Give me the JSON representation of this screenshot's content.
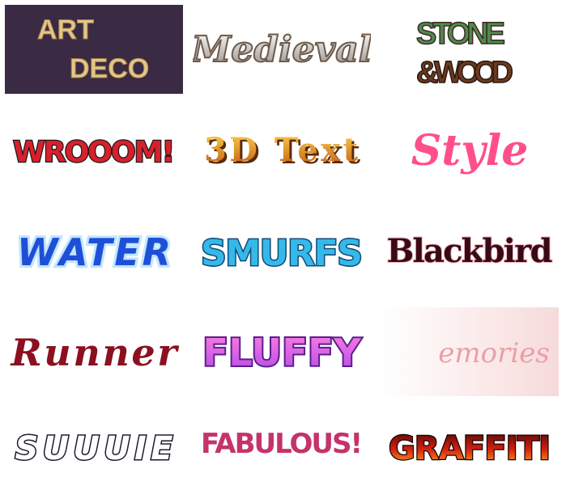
{
  "tiles": [
    {
      "label_line1": "ART",
      "label_line2": "DECO"
    },
    {
      "label": "Medieval"
    },
    {
      "label_line1": "STONE",
      "label_line2": "& WOOD"
    },
    {
      "label": "WROOOM!"
    },
    {
      "label": "3D Text"
    },
    {
      "label": "Style"
    },
    {
      "label": "WATER"
    },
    {
      "label": "SMURFS"
    },
    {
      "label": "Blackbird"
    },
    {
      "label": "Runner"
    },
    {
      "label": "FLUFFY"
    },
    {
      "label": "emories"
    },
    {
      "label": "SUUUIE"
    },
    {
      "label": "FABULOUS!"
    },
    {
      "label": "GRAFFITI"
    }
  ],
  "colors": {
    "artdeco_bg": "#3a2a44",
    "artdeco_text": "#e3c789",
    "stone_green": "#4f8a4f",
    "wood_brown": "#6b3a1f",
    "wroom_red": "#d8202c",
    "gold": "#e28a19",
    "style_pink": "#ff4f8a",
    "water_blue": "#1f4fd8",
    "smurf_cyan": "#35b9e8",
    "blackbird_maroon": "#3a0a14",
    "runner_red": "#8b1020",
    "fluffy_purple": "#b449e8",
    "memories_pink": "#e9a0a6",
    "fabulous_magenta": "#c4336a",
    "graffiti_red": "#d11f10"
  }
}
